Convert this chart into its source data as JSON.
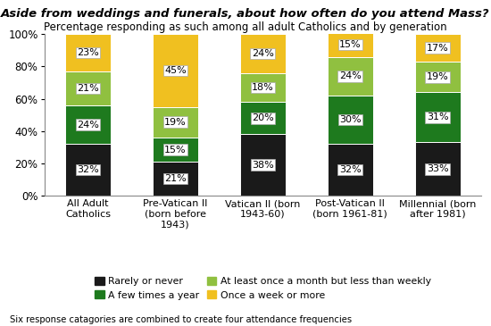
{
  "title": "Aside from weddings and funerals, about how often do you attend Mass?",
  "subtitle": "Percentage responding as such among all adult Catholics and by generation",
  "footnote": "Six response catagories are combined to create four attendance frequencies",
  "categories": [
    "All Adult\nCatholics",
    "Pre-Vatican II\n(born before\n1943)",
    "Vatican II (born\n1943-60)",
    "Post-Vatican II\n(born 1961-81)",
    "Millennial (born\nafter 1981)"
  ],
  "series": {
    "Rarely or never": [
      32,
      21,
      38,
      32,
      33
    ],
    "A few times a year": [
      24,
      15,
      20,
      30,
      31
    ],
    "At least once a month but less than weekly": [
      21,
      19,
      18,
      24,
      19
    ],
    "Once a week or more": [
      23,
      45,
      24,
      15,
      17
    ]
  },
  "colors": {
    "Rarely or never": "#1a1a1a",
    "A few times a year": "#1e7a1e",
    "At least once a month but less than weekly": "#90c040",
    "Once a week or more": "#f0c020"
  },
  "ylim": [
    0,
    100
  ],
  "yticks": [
    0,
    20,
    40,
    60,
    80,
    100
  ],
  "ytick_labels": [
    "0%",
    "20%",
    "40%",
    "60%",
    "80%",
    "100%"
  ],
  "background_color": "#ffffff",
  "label_fontsize": 8.0,
  "title_fontsize": 9.5,
  "subtitle_fontsize": 8.5
}
